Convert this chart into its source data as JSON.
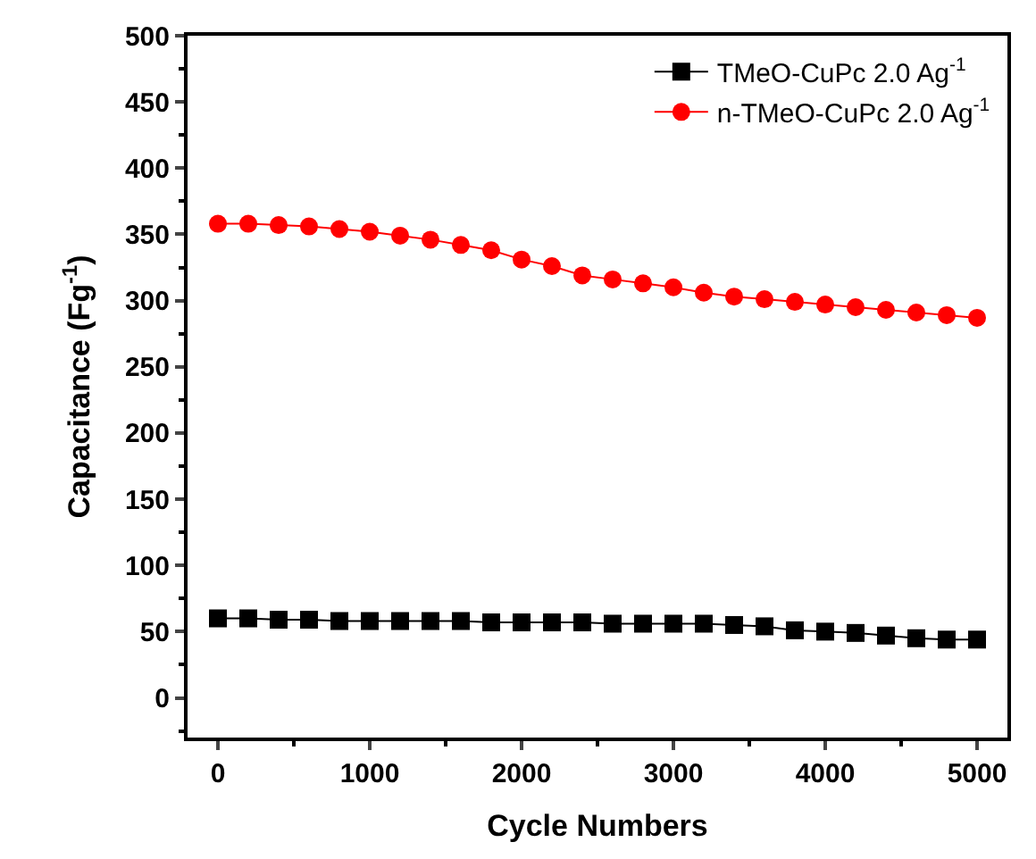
{
  "chart_data": {
    "type": "line",
    "xlabel": "Cycle Numbers",
    "ylabel": "Capacitance (Fg$^{-1}$)",
    "x": [
      0,
      200,
      400,
      600,
      800,
      1000,
      1200,
      1400,
      1600,
      1800,
      2000,
      2200,
      2400,
      2600,
      2800,
      3000,
      3200,
      3400,
      3600,
      3800,
      4000,
      4200,
      4400,
      4600,
      4800,
      5000
    ],
    "series": [
      {
        "name": "TMeO-CuPc 2.0 Ag$^{-1}$",
        "color": "#000000",
        "marker": "square",
        "values": [
          60,
          60,
          59,
          59,
          58,
          58,
          58,
          58,
          58,
          57,
          57,
          57,
          57,
          56,
          56,
          56,
          56,
          55,
          54,
          51,
          50,
          49,
          47,
          45,
          44,
          44
        ]
      },
      {
        "name": "n-TMeO-CuPc 2.0 Ag$^{-1}$",
        "color": "#ff0000",
        "marker": "circle",
        "values": [
          358,
          358,
          357,
          356,
          354,
          352,
          349,
          346,
          342,
          338,
          331,
          326,
          319,
          316,
          313,
          310,
          306,
          303,
          301,
          299,
          297,
          295,
          293,
          291,
          289,
          287
        ]
      }
    ],
    "xlim": [
      -200,
      5200
    ],
    "xticks": [
      0,
      1000,
      2000,
      3000,
      4000,
      5000
    ],
    "ylim": [
      -30,
      500
    ],
    "yticks": [
      0,
      50,
      100,
      150,
      200,
      250,
      300,
      350,
      400,
      450,
      500
    ],
    "legend": "top right",
    "line_style": "solid"
  }
}
